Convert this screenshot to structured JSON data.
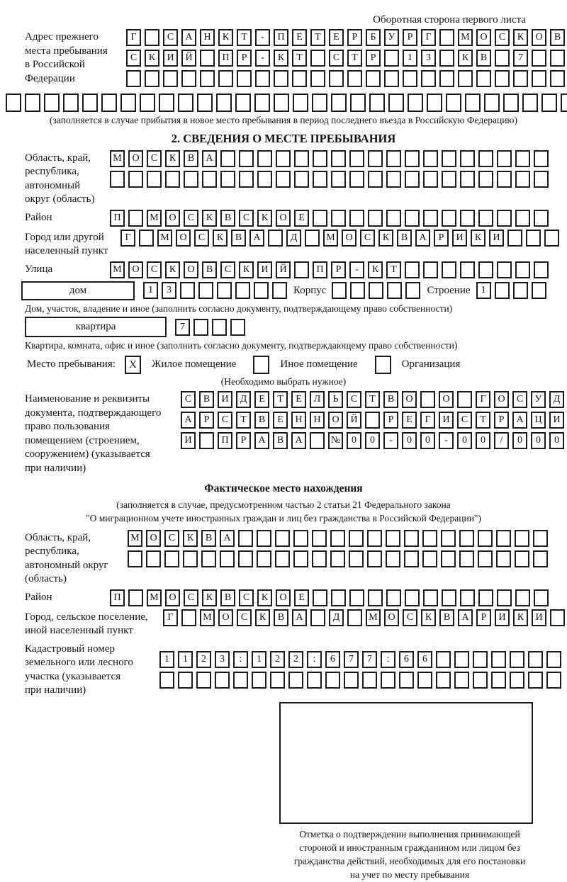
{
  "page": {
    "header_note": "Оборотная сторона первого листа"
  },
  "prev_address": {
    "label": "Адрес прежнего\nместа пребывания\nв Российской\nФедерации",
    "rows": [
      [
        "Г",
        "",
        "С",
        "А",
        "Н",
        "К",
        "Т",
        "-",
        "П",
        "Е",
        "Т",
        "Е",
        "Р",
        "Б",
        "У",
        "Р",
        "Г",
        "",
        "М",
        "О",
        "С",
        "К",
        "О",
        "В"
      ],
      [
        "С",
        "К",
        "И",
        "Й",
        "",
        "П",
        "Р",
        "-",
        "К",
        "Т",
        "",
        "С",
        "Т",
        "Р",
        "",
        "1",
        "3",
        "",
        "К",
        "В",
        "",
        "7",
        "",
        ""
      ],
      [
        "",
        "",
        "",
        "",
        "",
        "",
        "",
        "",
        "",
        "",
        "",
        "",
        "",
        "",
        "",
        "",
        "",
        "",
        "",
        "",
        "",
        "",
        "",
        ""
      ]
    ],
    "full_row": [
      "",
      "",
      "",
      "",
      "",
      "",
      "",
      "",
      "",
      "",
      "",
      "",
      "",
      "",
      "",
      "",
      "",
      "",
      "",
      "",
      "",
      "",
      "",
      "",
      "",
      "",
      "",
      "",
      "",
      ""
    ],
    "note": "(заполняется в случае прибытия в новое место пребывания в период последнего въезда в Российскую Федерацию)"
  },
  "section2": {
    "title": "2. СВЕДЕНИЯ О МЕСТЕ ПРЕБЫВАНИЯ",
    "oblast": {
      "label": "Область, край,\nреспублика,\nавтономный\nокруг (область)",
      "rows": [
        [
          "М",
          "О",
          "С",
          "К",
          "В",
          "А",
          "",
          "",
          "",
          "",
          "",
          "",
          "",
          "",
          "",
          "",
          "",
          "",
          "",
          "",
          "",
          "",
          "",
          ""
        ],
        [
          "",
          "",
          "",
          "",
          "",
          "",
          "",
          "",
          "",
          "",
          "",
          "",
          "",
          "",
          "",
          "",
          "",
          "",
          "",
          "",
          "",
          "",
          "",
          ""
        ]
      ]
    },
    "raion": {
      "label": "Район",
      "row": [
        "П",
        "",
        "М",
        "О",
        "С",
        "К",
        "В",
        "С",
        "К",
        "О",
        "Е",
        "",
        "",
        "",
        "",
        "",
        "",
        "",
        "",
        "",
        "",
        "",
        "",
        ""
      ]
    },
    "gorod": {
      "label": "Город или другой\nнаселенный пункт",
      "row": [
        "Г",
        "",
        "М",
        "О",
        "С",
        "К",
        "В",
        "А",
        "",
        "Д",
        "",
        "М",
        "О",
        "С",
        "К",
        "В",
        "А",
        "Р",
        "И",
        "К",
        "И",
        "",
        "",
        ""
      ]
    },
    "ulitsa": {
      "label": "Улица",
      "row": [
        "М",
        "О",
        "С",
        "К",
        "О",
        "В",
        "С",
        "К",
        "И",
        "Й",
        "",
        "П",
        "Р",
        "-",
        "К",
        "Т",
        "",
        "",
        "",
        "",
        "",
        "",
        "",
        ""
      ]
    },
    "dom": {
      "label": "дом",
      "digits": [
        "1",
        "3",
        "",
        "",
        "",
        "",
        "",
        ""
      ],
      "korpus_label": "Корпус",
      "korpus": [
        "",
        "",
        "",
        "",
        ""
      ],
      "stroenie_label": "Строение",
      "stroenie": [
        "1",
        "",
        "",
        ""
      ]
    },
    "dom_note": "Дом, участок, владение и иное (заполнить согласно документу, подтверждающему право собственности)",
    "kvartira": {
      "label": "квартира",
      "digits": [
        "7",
        "",
        "",
        ""
      ]
    },
    "kvartira_note": "Квартира, комната, офис и иное (заполнить согласно документу, подтверждающему право собственности)",
    "mesto": {
      "label": "Место пребывания:",
      "options": [
        {
          "mark": "X",
          "label": "Жилое помещение"
        },
        {
          "mark": "",
          "label": "Иное помещение"
        },
        {
          "mark": "",
          "label": "Организация"
        }
      ],
      "note": "(Необходимо выбрать нужное)"
    },
    "document": {
      "label": "Наименование и реквизиты\nдокумента, подтверждающего\nправо пользования\nпомещением (строением,\nсооружением) (указывается\nпри наличии)",
      "rows": [
        [
          "С",
          "В",
          "И",
          "Д",
          "Е",
          "Т",
          "Е",
          "Л",
          "Ь",
          "С",
          "Т",
          "В",
          "О",
          "",
          "О",
          "",
          "Г",
          "О",
          "С",
          "У",
          "Д"
        ],
        [
          "А",
          "Р",
          "С",
          "Т",
          "В",
          "Е",
          "Н",
          "Н",
          "О",
          "Й",
          "",
          "Р",
          "Е",
          "Г",
          "И",
          "С",
          "Т",
          "Р",
          "А",
          "Ц",
          "И"
        ],
        [
          "И",
          "",
          "П",
          "Р",
          "А",
          "В",
          "А",
          "",
          "№",
          "0",
          "0",
          "-",
          "0",
          "0",
          "-",
          "0",
          "0",
          "/",
          "0",
          "0",
          "0"
        ]
      ]
    }
  },
  "fact": {
    "title": "Фактическое место нахождения",
    "note": "(заполняется в случае, предусмотренном частью 2 статьи 21 Федерального закона\n\"О миграционном учете иностранных граждан и лиц без гражданства в Российской Федерации\")",
    "oblast": {
      "label": "Область, край,\nреспублика,\nавтономный округ\n(область)",
      "rows": [
        [
          "М",
          "О",
          "С",
          "К",
          "В",
          "А",
          "",
          "",
          "",
          "",
          "",
          "",
          "",
          "",
          "",
          "",
          "",
          "",
          "",
          "",
          "",
          "",
          ""
        ],
        [
          "",
          "",
          "",
          "",
          "",
          "",
          "",
          "",
          "",
          "",
          "",
          "",
          "",
          "",
          "",
          "",
          "",
          "",
          "",
          "",
          "",
          "",
          ""
        ]
      ]
    },
    "raion": {
      "label": "Район",
      "row": [
        "П",
        "",
        "М",
        "О",
        "С",
        "К",
        "В",
        "С",
        "К",
        "О",
        "Е",
        "",
        "",
        "",
        "",
        "",
        "",
        "",
        "",
        "",
        "",
        "",
        "",
        ""
      ]
    },
    "gorod": {
      "label": "Город, сельское поселение,\nиной населенный пункт",
      "row": [
        "Г",
        "",
        "М",
        "О",
        "С",
        "К",
        "В",
        "А",
        "",
        "Д",
        "",
        "М",
        "О",
        "С",
        "К",
        "В",
        "А",
        "Р",
        "И",
        "К",
        "И",
        ""
      ]
    },
    "kadastr": {
      "label": "Кадастровый номер\nземельного или лесного\nучастка (указывается\nпри наличии)",
      "rows": [
        [
          "1",
          "1",
          "2",
          "3",
          ":",
          "1",
          "2",
          "2",
          ":",
          "6",
          "7",
          "7",
          ":",
          "6",
          "6",
          "",
          "",
          "",
          "",
          "",
          "",
          ""
        ],
        [
          "",
          "",
          "",
          "",
          "",
          "",
          "",
          "",
          "",
          "",
          "",
          "",
          "",
          "",
          "",
          "",
          "",
          "",
          "",
          "",
          "",
          ""
        ]
      ]
    },
    "stamp_note": "Отметка о подтверждении выполнения принимающей\nстороной и иностранным гражданином или лицом без\nгражданства действий, необходимых для его постановки\nна учет по месту пребывания"
  }
}
